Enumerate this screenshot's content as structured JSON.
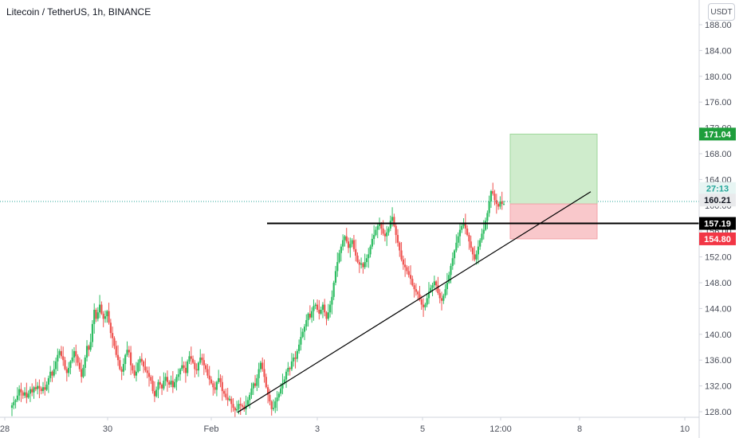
{
  "symbol_title": "Litecoin / TetherUS, 1h, BINANCE",
  "currency_label": "USDT",
  "colors": {
    "up": "#26a69a",
    "up_body": "#2ebd62",
    "down": "#ef5350",
    "profit_zone": "#cfeccc",
    "stop_zone": "#f9c8cb",
    "target_label": "#1e9e3c",
    "stop_label": "#f23645",
    "current_label": "#4a4a4a",
    "entry_label": "#000000"
  },
  "chart_data": {
    "type": "candlestick",
    "y_ticks": [
      "128.00",
      "132.00",
      "136.00",
      "140.00",
      "144.00",
      "148.00",
      "152.00",
      "156.00",
      "160.00",
      "164.00",
      "168.00",
      "172.00",
      "176.00",
      "180.00",
      "184.00",
      "188.00"
    ],
    "x_ticks": [
      "28",
      "30",
      "Feb",
      "3",
      "5",
      "12:00",
      "8",
      "10"
    ],
    "ylim": [
      127.6,
      190.5
    ],
    "closes": [
      129,
      129.5,
      129.8,
      130.5,
      131.5,
      131,
      130.5,
      131,
      130.2,
      130.8,
      131.5,
      131,
      131.8,
      131.5,
      132,
      131.6,
      131.2,
      131.8,
      131.4,
      132.2,
      133.2,
      134.2,
      133.6,
      134.6,
      135.8,
      136.8,
      137.4,
      136.6,
      136,
      134.6,
      134,
      134.8,
      135.8,
      136.4,
      137.4,
      136.6,
      135.6,
      134.6,
      133.4,
      134.8,
      136.4,
      138.2,
      137.6,
      138.8,
      141.6,
      143.8,
      142.4,
      143.4,
      144.6,
      143.2,
      142.4,
      142.8,
      143.6,
      141.8,
      140.2,
      139.4,
      138.2,
      136.8,
      136,
      134.6,
      134.2,
      135.4,
      136.8,
      137.6,
      137.2,
      135.2,
      134.4,
      133.6,
      134.2,
      135.6,
      136.2,
      135.8,
      135,
      134.4,
      134,
      133.4,
      132.8,
      131.2,
      130.4,
      131.4,
      132.6,
      132.2,
      131.6,
      132.8,
      133.4,
      132.6,
      132.2,
      132.8,
      131.8,
      132.6,
      133.4,
      133.8,
      134.6,
      135.2,
      134.8,
      134,
      135.8,
      136.6,
      136.2,
      135.6,
      134.6,
      134.4,
      135.6,
      136.4,
      136,
      135.2,
      134.6,
      133.6,
      133,
      132.4,
      131.8,
      131.4,
      132.6,
      133.2,
      132.6,
      131.2,
      130.8,
      130.2,
      129.8,
      130,
      129.2,
      128.6,
      128.2,
      128.4,
      129.2,
      129,
      128.8,
      128.4,
      129,
      129.8,
      130.6,
      131.6,
      132.4,
      132,
      133.2,
      134.6,
      135.6,
      134.6,
      133.4,
      131.8,
      130.6,
      129.6,
      128.4,
      128.6,
      129.6,
      130.2,
      130.8,
      131.6,
      132.4,
      133,
      134.2,
      134.8,
      134.6,
      135.8,
      136.4,
      136.2,
      137.4,
      138.4,
      139.6,
      140.4,
      141.2,
      142.2,
      143.2,
      142.6,
      143.6,
      144.4,
      144.6,
      143.8,
      143.2,
      143.8,
      144.6,
      143.4,
      142.4,
      143.4,
      144.6,
      145.8,
      148,
      149.8,
      151.2,
      152.6,
      153.6,
      154.6,
      155.2,
      154.4,
      153.4,
      154,
      154.6,
      153.2,
      152.2,
      151.2,
      150.8,
      151,
      150.4,
      151.2,
      151.8,
      152.4,
      153.6,
      154.8,
      155.4,
      156.2,
      156.8,
      157.2,
      156.4,
      155.6,
      155.2,
      155.8,
      156.4,
      157.6,
      158.2,
      156.8,
      155.4,
      154.2,
      153,
      151.6,
      150.8,
      150.4,
      149.8,
      149.2,
      148.6,
      147.6,
      147,
      146.6,
      146.2,
      145.4,
      144.6,
      144.2,
      144.6,
      145.6,
      146.6,
      147.2,
      147.6,
      148.2,
      147.6,
      146.4,
      145.6,
      145.2,
      146,
      147,
      148,
      149.2,
      150.6,
      151.8,
      153,
      154.2,
      155.2,
      156.2,
      156.8,
      157.2,
      156.4,
      155.4,
      154.4,
      153.4,
      152.4,
      151.6,
      152.4,
      153.6,
      154.6,
      155.6,
      156.2,
      157.6,
      158.8,
      160.6,
      162.2,
      161.8,
      160.8,
      160.2,
      159.8,
      160.6,
      160.2,
      160.21
    ],
    "position_tool": {
      "entry": 157.19,
      "target": 171.04,
      "stop": 154.8,
      "current": 160.21
    },
    "price_labels": {
      "target": "171.04",
      "countdown": "27:13",
      "current": "160.21",
      "entry": "157.19",
      "stop": "154.80"
    },
    "horizontal_line": 157.19,
    "trendline": {
      "from": [
        129.0,
        127.9
      ],
      "to": [
        316.0,
        162.1
      ]
    }
  }
}
